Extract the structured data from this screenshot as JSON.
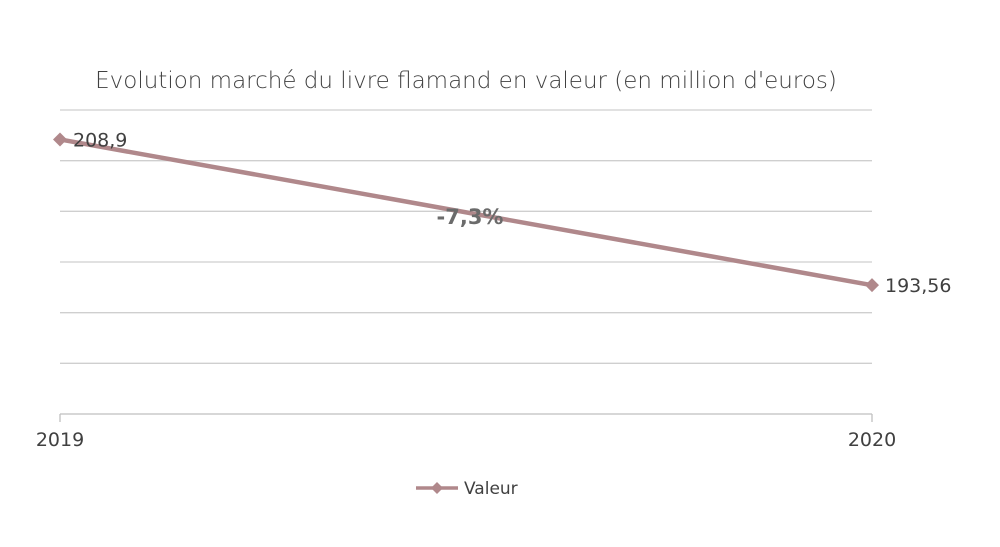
{
  "chart_data": {
    "type": "line",
    "title": "Evolution marché du livre flamand en valeur (en million d'euros)",
    "xlabel": "",
    "ylabel": "",
    "categories": [
      "2019",
      "2020"
    ],
    "series": [
      {
        "name": "Valeur",
        "values": [
          208.9,
          193.56
        ],
        "data_labels": [
          "208,9",
          "193,56"
        ],
        "color": "#b0888b"
      }
    ],
    "ylim": [
      180,
      212
    ],
    "grid": true,
    "y_tick_labels_visible": false,
    "legend_position": "bottom",
    "annotations": [
      {
        "text": "-7,3%"
      }
    ]
  }
}
